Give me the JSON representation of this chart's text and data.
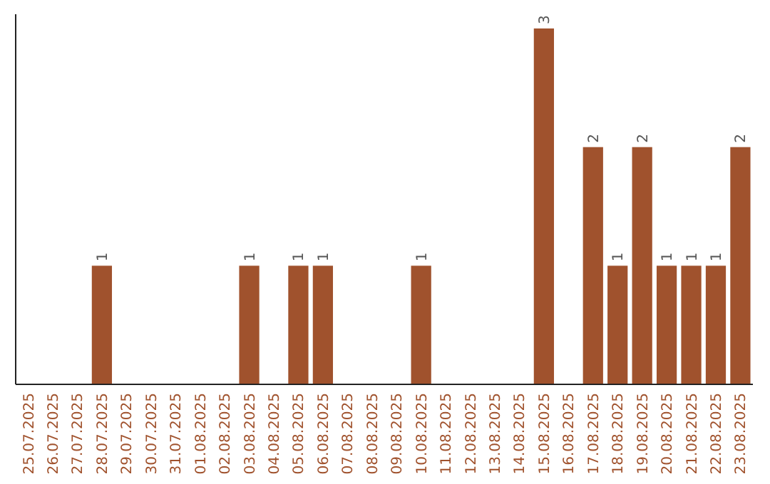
{
  "chart_data": {
    "type": "bar",
    "categories": [
      "25.07.2025",
      "26.07.2025",
      "27.07.2025",
      "28.07.2025",
      "29.07.2025",
      "30.07.2025",
      "31.07.2025",
      "01.08.2025",
      "02.08.2025",
      "03.08.2025",
      "04.08.2025",
      "05.08.2025",
      "06.08.2025",
      "07.08.2025",
      "08.08.2025",
      "09.08.2025",
      "10.08.2025",
      "11.08.2025",
      "12.08.2025",
      "13.08.2025",
      "14.08.2025",
      "15.08.2025",
      "16.08.2025",
      "17.08.2025",
      "18.08.2025",
      "19.08.2025",
      "20.08.2025",
      "21.08.2025",
      "22.08.2025",
      "23.08.2025"
    ],
    "values": [
      0,
      0,
      0,
      1,
      0,
      0,
      0,
      0,
      0,
      1,
      0,
      1,
      1,
      0,
      0,
      0,
      1,
      0,
      0,
      0,
      0,
      3,
      0,
      2,
      1,
      2,
      1,
      1,
      1,
      2
    ],
    "value_labels": [
      null,
      null,
      null,
      "1",
      null,
      null,
      null,
      null,
      null,
      "1",
      null,
      "1",
      "1",
      null,
      null,
      null,
      "1",
      null,
      null,
      null,
      null,
      "3",
      null,
      "2",
      "1",
      "2",
      "1",
      "1",
      "1",
      "2"
    ],
    "color": "#a0522d",
    "tick_labels": "x"
  }
}
